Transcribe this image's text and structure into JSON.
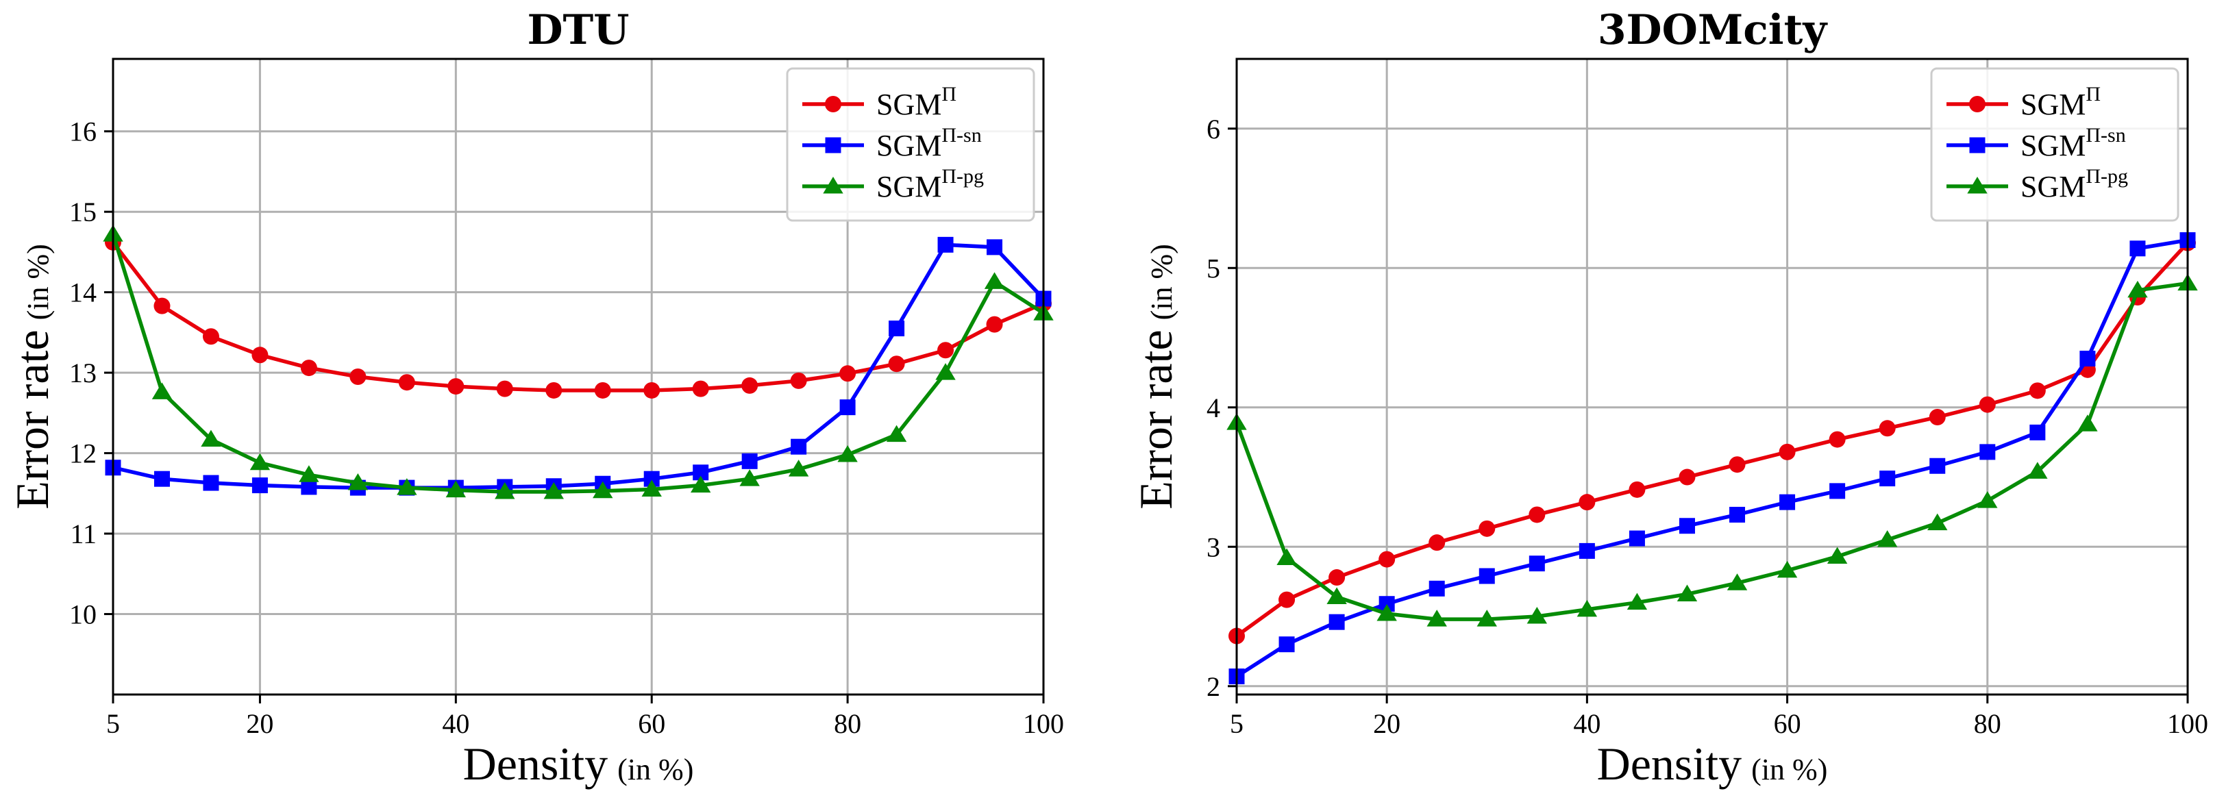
{
  "chart_data": [
    {
      "type": "line",
      "title": "DTU",
      "xlabel": "Density",
      "xlabel_unit": "(in %)",
      "ylabel": "Error rate",
      "ylabel_unit": "(in %)",
      "xlim": [
        5,
        100
      ],
      "ylim": [
        9.0,
        16.9
      ],
      "xticks": [
        5,
        20,
        40,
        60,
        80,
        100
      ],
      "xtick_labels": [
        "5",
        "20",
        "40",
        "60",
        "80",
        "100"
      ],
      "yticks": [
        10,
        11,
        12,
        13,
        14,
        15,
        16
      ],
      "ytick_labels": [
        "10",
        "11",
        "12",
        "13",
        "14",
        "15",
        "16"
      ],
      "grid": true,
      "legend_position": "top-right",
      "x": [
        5,
        10,
        15,
        20,
        25,
        30,
        35,
        40,
        45,
        50,
        55,
        60,
        65,
        70,
        75,
        80,
        85,
        90,
        95,
        100
      ],
      "series": [
        {
          "name": "SGM",
          "sup": "Π",
          "color": "#e8000b",
          "marker": "circle",
          "values": [
            14.62,
            13.83,
            13.45,
            13.22,
            13.06,
            12.95,
            12.88,
            12.83,
            12.8,
            12.78,
            12.78,
            12.78,
            12.8,
            12.84,
            12.9,
            12.99,
            13.11,
            13.28,
            13.6,
            13.86
          ]
        },
        {
          "name": "SGM",
          "sup": "Π-sn",
          "color": "#0000ff",
          "marker": "square",
          "values": [
            11.82,
            11.68,
            11.63,
            11.6,
            11.58,
            11.57,
            11.57,
            11.57,
            11.58,
            11.59,
            11.62,
            11.68,
            11.76,
            11.9,
            12.08,
            12.57,
            13.55,
            14.59,
            14.56,
            13.92
          ]
        },
        {
          "name": "SGM",
          "sup": "Π-pg",
          "color": "#068c06",
          "marker": "triangle",
          "values": [
            14.72,
            12.76,
            12.17,
            11.88,
            11.73,
            11.63,
            11.57,
            11.54,
            11.52,
            11.52,
            11.53,
            11.55,
            11.6,
            11.68,
            11.8,
            11.98,
            12.23,
            13.0,
            14.13,
            13.74
          ]
        }
      ]
    },
    {
      "type": "line",
      "title": "3DOMcity",
      "xlabel": "Density",
      "xlabel_unit": "(in %)",
      "ylabel": "Error rate",
      "ylabel_unit": "(in %)",
      "xlim": [
        5,
        100
      ],
      "ylim": [
        1.94,
        6.5
      ],
      "xticks": [
        5,
        20,
        40,
        60,
        80,
        100
      ],
      "xtick_labels": [
        "5",
        "20",
        "40",
        "60",
        "80",
        "100"
      ],
      "yticks": [
        2,
        3,
        4,
        5,
        6
      ],
      "ytick_labels": [
        "2",
        "3",
        "4",
        "5",
        "6"
      ],
      "grid": true,
      "legend_position": "top-right",
      "x": [
        5,
        10,
        15,
        20,
        25,
        30,
        35,
        40,
        45,
        50,
        55,
        60,
        65,
        70,
        75,
        80,
        85,
        90,
        95,
        100
      ],
      "series": [
        {
          "name": "SGM",
          "sup": "Π",
          "color": "#e8000b",
          "marker": "circle",
          "values": [
            2.36,
            2.62,
            2.78,
            2.91,
            3.03,
            3.13,
            3.23,
            3.32,
            3.41,
            3.5,
            3.59,
            3.68,
            3.77,
            3.85,
            3.93,
            4.02,
            4.12,
            4.27,
            4.79,
            5.18
          ]
        },
        {
          "name": "SGM",
          "sup": "Π-sn",
          "color": "#0000ff",
          "marker": "square",
          "values": [
            2.07,
            2.3,
            2.46,
            2.59,
            2.7,
            2.79,
            2.88,
            2.97,
            3.06,
            3.15,
            3.23,
            3.32,
            3.4,
            3.49,
            3.58,
            3.68,
            3.82,
            4.35,
            5.14,
            5.2
          ]
        },
        {
          "name": "SGM",
          "sup": "Π-pg",
          "color": "#068c06",
          "marker": "triangle",
          "values": [
            3.89,
            2.92,
            2.64,
            2.52,
            2.48,
            2.48,
            2.5,
            2.55,
            2.6,
            2.66,
            2.74,
            2.83,
            2.93,
            3.05,
            3.17,
            3.33,
            3.54,
            3.88,
            4.84,
            4.89
          ]
        }
      ]
    }
  ]
}
